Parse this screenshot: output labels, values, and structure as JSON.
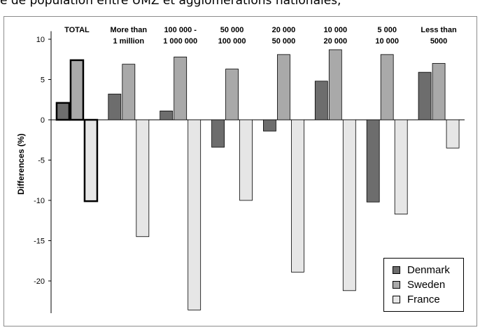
{
  "top_caption": "e de population entre UMZ et agglomérations nationales,",
  "chart_data": {
    "type": "bar",
    "ylabel": "Differences (%)",
    "ylim": [
      -24,
      11
    ],
    "yticks": [
      10,
      5,
      0,
      -5,
      -10,
      -15,
      -20
    ],
    "categories": [
      [
        "TOTAL"
      ],
      [
        "More than",
        "1 million"
      ],
      [
        "100 000 -",
        "1 000 000"
      ],
      [
        "50 000",
        "100 000"
      ],
      [
        "20 000",
        "50 000"
      ],
      [
        "10 000",
        "20 000"
      ],
      [
        "5 000",
        "10 000"
      ],
      [
        "Less than",
        "5000"
      ]
    ],
    "series": [
      {
        "name": "Denmark",
        "color": "#6d6d6d",
        "values": [
          2.1,
          3.2,
          1.1,
          -3.4,
          -1.4,
          4.8,
          -10.2,
          5.9
        ]
      },
      {
        "name": "Sweden",
        "color": "#a9a9a9",
        "values": [
          7.4,
          6.9,
          7.8,
          6.3,
          8.1,
          8.7,
          8.1,
          7.0
        ]
      },
      {
        "name": "France",
        "color": "#e6e6e6",
        "values": [
          -10.1,
          -14.5,
          -23.6,
          -10.0,
          -18.9,
          -21.2,
          -11.7,
          -3.5
        ]
      }
    ],
    "highlight_category": "TOTAL",
    "legend": {
      "position": "bottom-right"
    },
    "grid": false
  }
}
